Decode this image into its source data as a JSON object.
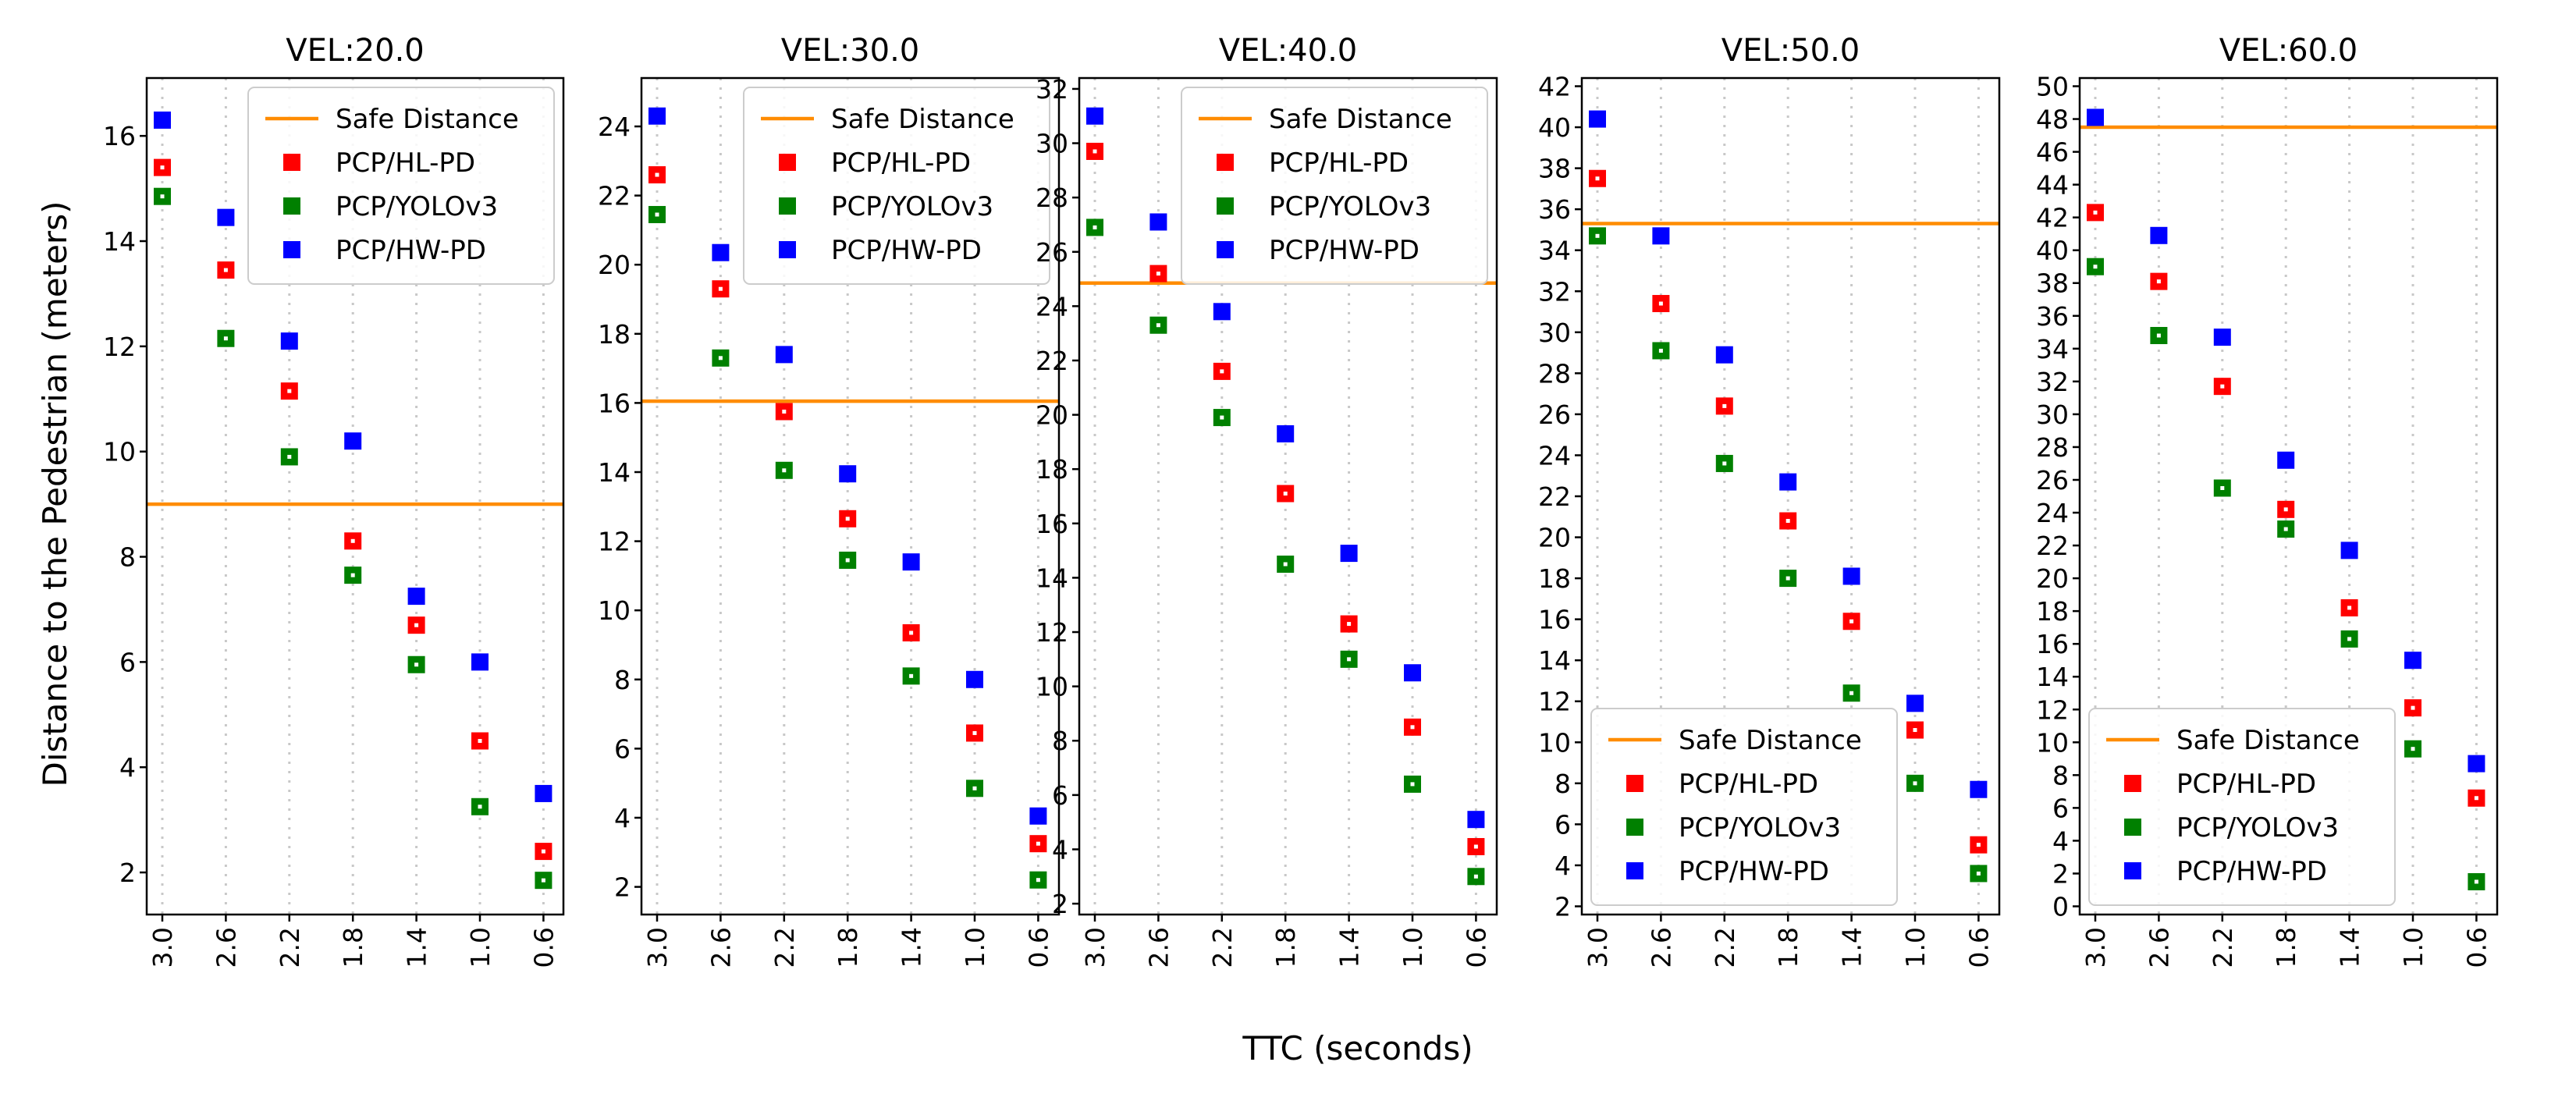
{
  "figure": {
    "ylabel": "Distance to the Pedestrian (meters)",
    "xlabel": "TTC (seconds)"
  },
  "chart_data": [
    {
      "type": "scatter",
      "title": "VEL:20.0",
      "xlabel": "TTC (seconds)",
      "ylabel": "Distance to the Pedestrian (meters)",
      "x": [
        "3.0",
        "2.6",
        "2.2",
        "1.8",
        "1.4",
        "1.0",
        "0.6"
      ],
      "ylim": [
        1.2,
        17.1
      ],
      "yticks": [
        2,
        4,
        6,
        8,
        10,
        12,
        14,
        16
      ],
      "grid": "x-dotted",
      "legend_position": "top-right",
      "safe_distance": 9.0,
      "series": [
        {
          "name": "PCP/HL-PD",
          "color": "#ff0000",
          "values": [
            15.4,
            13.45,
            11.15,
            8.3,
            6.7,
            4.5,
            2.4
          ]
        },
        {
          "name": "PCP/YOLOv3",
          "color": "#008000",
          "values": [
            14.85,
            12.15,
            9.9,
            7.65,
            5.95,
            3.25,
            1.85
          ]
        },
        {
          "name": "PCP/HW-PD",
          "color": "#0000ff",
          "values": [
            16.3,
            14.45,
            12.1,
            10.2,
            7.25,
            6.0,
            3.5
          ]
        }
      ]
    },
    {
      "type": "scatter",
      "title": "VEL:30.0",
      "xlabel": "TTC (seconds)",
      "ylabel": "",
      "x": [
        "3.0",
        "2.6",
        "2.2",
        "1.8",
        "1.4",
        "1.0",
        "0.6"
      ],
      "ylim": [
        1.2,
        25.4
      ],
      "yticks": [
        2,
        4,
        6,
        8,
        10,
        12,
        14,
        16,
        18,
        20,
        22,
        24
      ],
      "grid": "x-dotted",
      "legend_position": "top-right",
      "safe_distance": 16.05,
      "series": [
        {
          "name": "PCP/HL-PD",
          "color": "#ff0000",
          "values": [
            22.6,
            19.3,
            15.75,
            12.65,
            9.35,
            6.45,
            3.25
          ]
        },
        {
          "name": "PCP/YOLOv3",
          "color": "#008000",
          "values": [
            21.45,
            17.3,
            14.05,
            11.45,
            8.1,
            4.85,
            2.2
          ]
        },
        {
          "name": "PCP/HW-PD",
          "color": "#0000ff",
          "values": [
            24.3,
            20.35,
            17.4,
            13.95,
            11.4,
            8.0,
            4.05
          ]
        }
      ]
    },
    {
      "type": "scatter",
      "title": "VEL:40.0",
      "xlabel": "TTC (seconds)",
      "ylabel": "",
      "x": [
        "3.0",
        "2.6",
        "2.2",
        "1.8",
        "1.4",
        "1.0",
        "0.6"
      ],
      "ylim": [
        1.6,
        32.4
      ],
      "yticks": [
        2,
        4,
        6,
        8,
        10,
        12,
        14,
        16,
        18,
        20,
        22,
        24,
        26,
        28,
        30,
        32
      ],
      "grid": "x-dotted",
      "legend_position": "top-right",
      "safe_distance": 24.85,
      "series": [
        {
          "name": "PCP/HL-PD",
          "color": "#ff0000",
          "values": [
            29.7,
            25.2,
            21.6,
            17.1,
            12.3,
            8.5,
            4.1
          ]
        },
        {
          "name": "PCP/YOLOv3",
          "color": "#008000",
          "values": [
            26.9,
            23.3,
            19.9,
            14.5,
            11.0,
            6.4,
            3.0
          ]
        },
        {
          "name": "PCP/HW-PD",
          "color": "#0000ff",
          "values": [
            31.0,
            27.1,
            23.8,
            19.3,
            14.9,
            10.5,
            5.1
          ]
        }
      ]
    },
    {
      "type": "scatter",
      "title": "VEL:50.0",
      "xlabel": "TTC (seconds)",
      "ylabel": "",
      "x": [
        "3.0",
        "2.6",
        "2.2",
        "1.8",
        "1.4",
        "1.0",
        "0.6"
      ],
      "ylim": [
        1.6,
        42.4
      ],
      "yticks": [
        2,
        4,
        6,
        8,
        10,
        12,
        14,
        16,
        18,
        20,
        22,
        24,
        26,
        28,
        30,
        32,
        34,
        36,
        38,
        40,
        42
      ],
      "grid": "x-dotted",
      "legend_position": "bottom-left",
      "safe_distance": 35.3,
      "series": [
        {
          "name": "PCP/HL-PD",
          "color": "#ff0000",
          "values": [
            37.5,
            31.4,
            26.4,
            20.8,
            15.9,
            10.6,
            5.0
          ]
        },
        {
          "name": "PCP/YOLOv3",
          "color": "#008000",
          "values": [
            34.7,
            29.1,
            23.6,
            18.0,
            12.4,
            8.0,
            3.6
          ]
        },
        {
          "name": "PCP/HW-PD",
          "color": "#0000ff",
          "values": [
            40.4,
            34.7,
            28.9,
            22.7,
            18.1,
            11.9,
            7.7
          ]
        }
      ]
    },
    {
      "type": "scatter",
      "title": "VEL:60.0",
      "xlabel": "TTC (seconds)",
      "ylabel": "",
      "x": [
        "3.0",
        "2.6",
        "2.2",
        "1.8",
        "1.4",
        "1.0",
        "0.6"
      ],
      "ylim": [
        -0.5,
        50.5
      ],
      "yticks": [
        0,
        2,
        4,
        6,
        8,
        10,
        12,
        14,
        16,
        18,
        20,
        22,
        24,
        26,
        28,
        30,
        32,
        34,
        36,
        38,
        40,
        42,
        44,
        46,
        48,
        50
      ],
      "grid": "x-dotted",
      "legend_position": "bottom-left",
      "safe_distance": 47.5,
      "series": [
        {
          "name": "PCP/HL-PD",
          "color": "#ff0000",
          "values": [
            42.3,
            38.1,
            31.7,
            24.2,
            18.2,
            12.1,
            6.6
          ]
        },
        {
          "name": "PCP/YOLOv3",
          "color": "#008000",
          "values": [
            39.0,
            34.8,
            25.5,
            23.0,
            16.3,
            9.6,
            1.5
          ]
        },
        {
          "name": "PCP/HW-PD",
          "color": "#0000ff",
          "values": [
            48.1,
            40.9,
            34.7,
            27.2,
            21.7,
            15.0,
            8.7
          ]
        }
      ]
    }
  ],
  "legend": {
    "safe_label": "Safe Distance",
    "safe_color": "#ff8c00"
  }
}
